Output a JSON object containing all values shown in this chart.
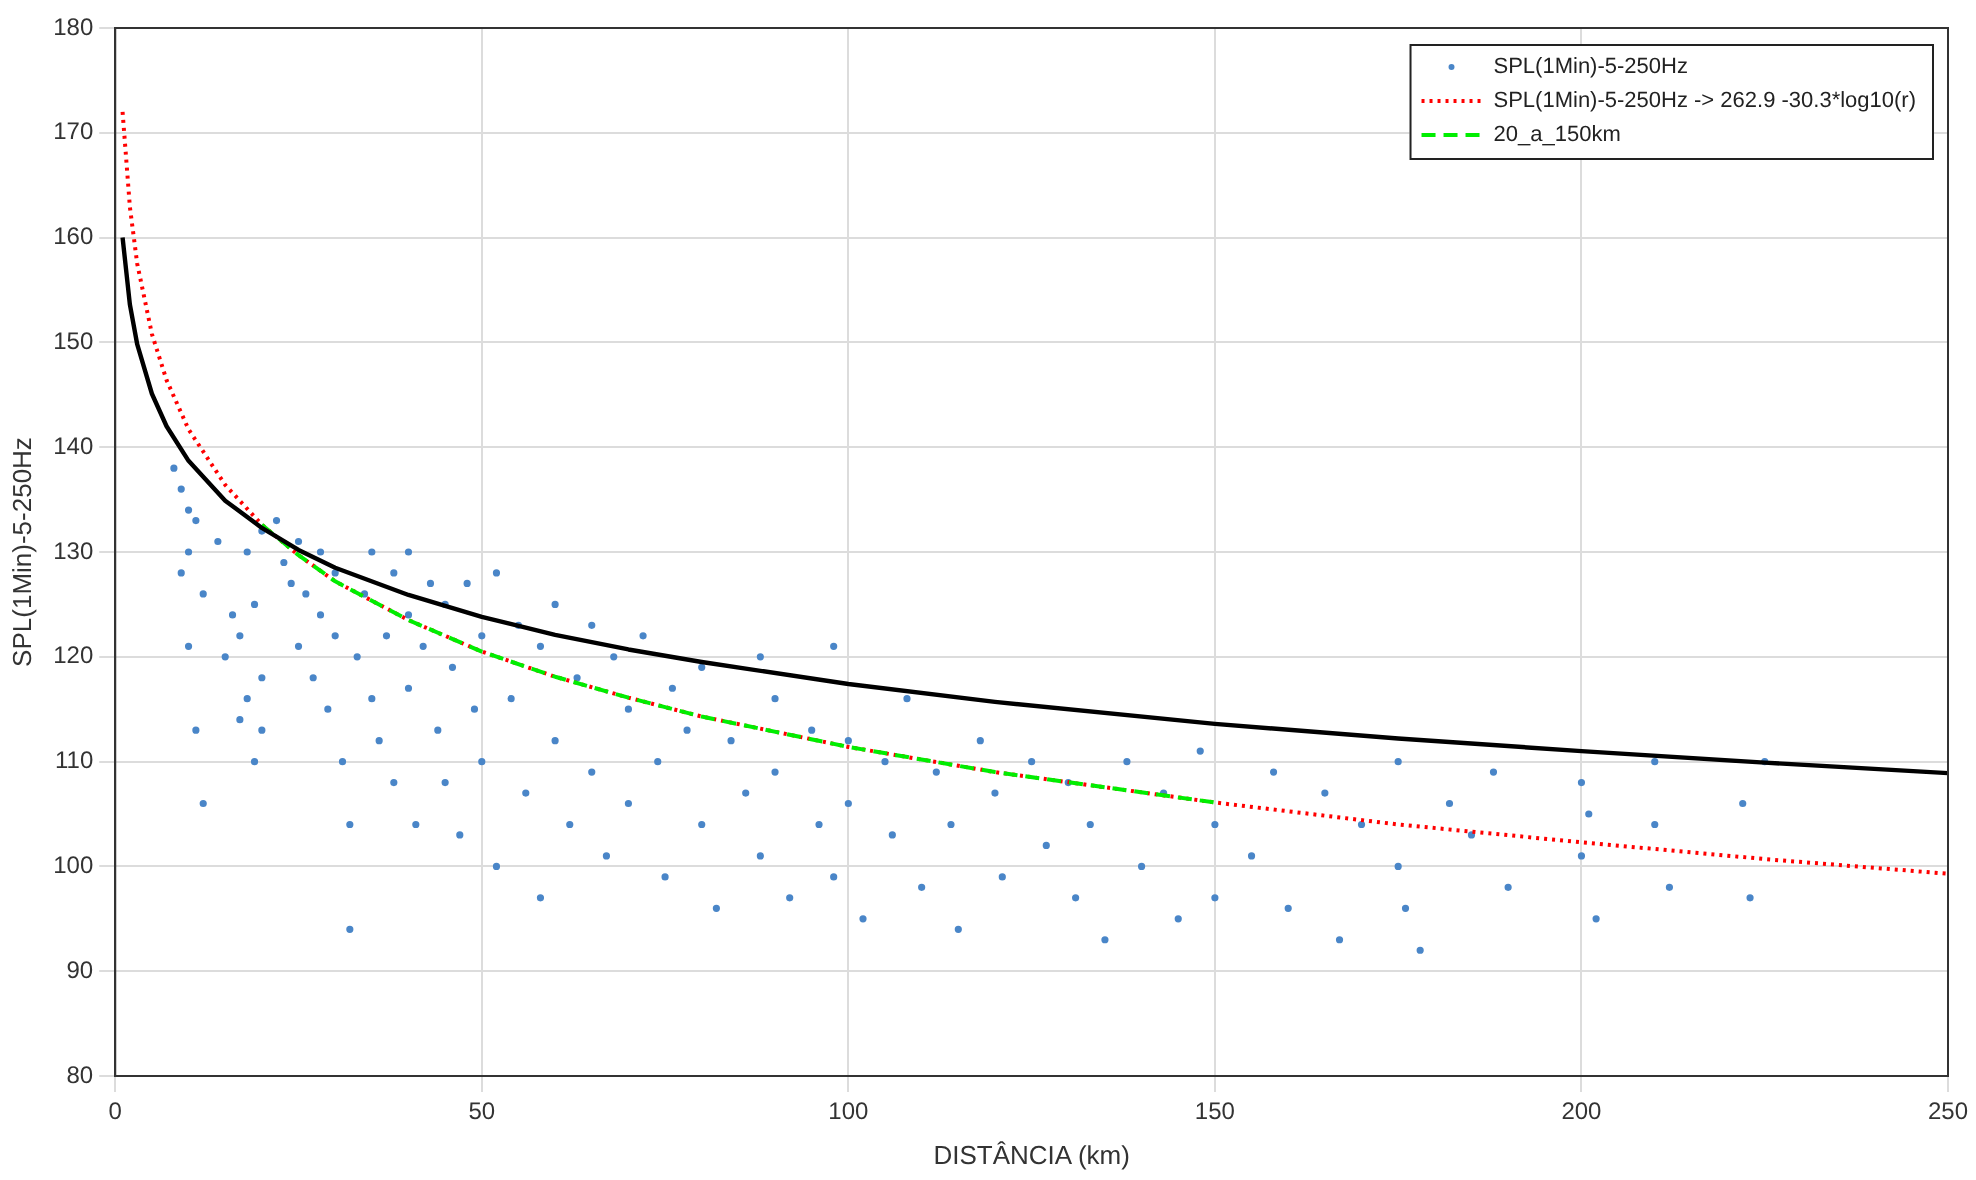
{
  "chart_data": {
    "type": "scatter",
    "xlabel": "DISTÂNCIA (km)",
    "ylabel": "SPL(1Min)-5-250Hz",
    "xlim": [
      0,
      250
    ],
    "xticks": [
      0,
      50,
      100,
      150,
      200,
      250
    ],
    "ylim": [
      80,
      180
    ],
    "yticks": [
      80,
      90,
      100,
      110,
      120,
      130,
      140,
      150,
      160,
      170,
      180
    ],
    "grid": true,
    "legend": "top right",
    "series": [
      {
        "name": "SPL(1Min)-5-250Hz",
        "marker": "circle",
        "color": "#4a86c8",
        "x": [
          8,
          9,
          10,
          11,
          12,
          10,
          11,
          12,
          9,
          10,
          14,
          15,
          16,
          17,
          18,
          18,
          19,
          20,
          20,
          20,
          19,
          17,
          22,
          23,
          24,
          25,
          25,
          26,
          27,
          28,
          28,
          29,
          30,
          30,
          31,
          32,
          32,
          33,
          34,
          35,
          35,
          36,
          37,
          38,
          38,
          40,
          40,
          40,
          41,
          42,
          43,
          44,
          45,
          45,
          46,
          47,
          48,
          49,
          50,
          50,
          52,
          52,
          54,
          55,
          56,
          58,
          58,
          60,
          60,
          62,
          63,
          65,
          65,
          67,
          68,
          70,
          70,
          72,
          74,
          75,
          76,
          78,
          80,
          80,
          82,
          84,
          86,
          88,
          88,
          90,
          90,
          92,
          95,
          96,
          98,
          98,
          100,
          100,
          102,
          105,
          106,
          108,
          110,
          112,
          114,
          115,
          118,
          120,
          121,
          125,
          127,
          130,
          131,
          133,
          135,
          138,
          140,
          143,
          145,
          148,
          150,
          150,
          155,
          158,
          160,
          165,
          167,
          170,
          175,
          175,
          176,
          178,
          182,
          185,
          188,
          190,
          200,
          200,
          201,
          202,
          210,
          210,
          212,
          222,
          223,
          225
        ],
        "values": [
          138,
          136,
          134,
          133,
          126,
          121,
          113,
          106,
          128,
          130,
          131,
          120,
          124,
          122,
          130,
          116,
          125,
          132,
          118,
          113,
          110,
          114,
          133,
          129,
          127,
          131,
          121,
          126,
          118,
          124,
          130,
          115,
          122,
          128,
          110,
          104,
          94,
          120,
          126,
          130,
          116,
          112,
          122,
          128,
          108,
          124,
          130,
          117,
          104,
          121,
          127,
          113,
          125,
          108,
          119,
          103,
          127,
          115,
          122,
          110,
          128,
          100,
          116,
          123,
          107,
          121,
          97,
          125,
          112,
          104,
          118,
          123,
          109,
          101,
          120,
          115,
          106,
          122,
          110,
          99,
          117,
          113,
          104,
          119,
          96,
          112,
          107,
          120,
          101,
          116,
          109,
          97,
          113,
          104,
          121,
          99,
          112,
          106,
          95,
          110,
          103,
          116,
          98,
          109,
          104,
          94,
          112,
          107,
          99,
          110,
          102,
          108,
          97,
          104,
          93,
          110,
          100,
          107,
          95,
          111,
          104,
          97,
          101,
          109,
          96,
          107,
          93,
          104,
          110,
          100,
          96,
          92,
          106,
          103,
          109,
          98,
          108,
          101,
          105,
          95,
          110,
          104,
          98,
          106,
          97,
          110
        ]
      },
      {
        "name": "SPL(1Min)-5-250Hz -> 262.9 -30.3*log10(r)",
        "type": "line",
        "marker": "none",
        "line_style": "dotted",
        "color": "#ff0000",
        "x": [
          1,
          2,
          3,
          5,
          7,
          10,
          15,
          20,
          25,
          30,
          40,
          50,
          60,
          70,
          80,
          100,
          120,
          150,
          175,
          200,
          225,
          250
        ],
        "values": [
          172.0,
          162.9,
          157.5,
          150.8,
          146.4,
          141.7,
          136.4,
          132.6,
          129.7,
          127.2,
          123.5,
          120.5,
          118.1,
          116.1,
          114.3,
          111.4,
          109.0,
          106.1,
          104.0,
          102.3,
          100.7,
          99.3
        ]
      },
      {
        "name": "20_a_150km",
        "type": "line",
        "marker": "none",
        "line_style": "dashed",
        "color": "#00ee00",
        "x": [
          20,
          25,
          30,
          40,
          50,
          60,
          70,
          80,
          100,
          120,
          150
        ],
        "values": [
          132.6,
          129.7,
          127.2,
          123.5,
          120.5,
          118.1,
          116.1,
          114.3,
          111.4,
          109.0,
          106.1
        ]
      },
      {
        "type": "line",
        "marker": "none",
        "line_style": "solid",
        "color": "#000000",
        "x": [
          1,
          2,
          3,
          5,
          7,
          10,
          15,
          20,
          25,
          30,
          40,
          50,
          60,
          70,
          80,
          100,
          120,
          150,
          175,
          200,
          225,
          250
        ],
        "values": [
          160.0,
          153.6,
          149.8,
          145.1,
          142.0,
          138.7,
          134.9,
          132.3,
          130.2,
          128.5,
          125.9,
          123.8,
          122.1,
          120.7,
          119.5,
          117.4,
          115.7,
          113.6,
          112.2,
          111.0,
          109.9,
          108.9
        ]
      }
    ]
  }
}
